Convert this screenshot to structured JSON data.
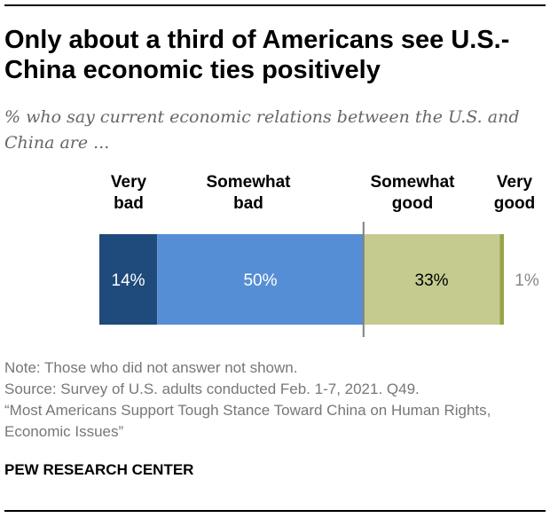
{
  "title": "Only about a third of Americans see U.S.-China economic ties positively",
  "subtitle": "% who say current economic relations between the U.S. and China are ...",
  "chart_data": {
    "type": "bar",
    "orientation": "horizontal-stacked",
    "categories": [
      "Very bad",
      "Somewhat bad",
      "Somewhat good",
      "Very good"
    ],
    "values": [
      14,
      50,
      33,
      1
    ],
    "labels": [
      "14%",
      "50%",
      "33%",
      "1%"
    ],
    "colors": [
      "#1f4a7c",
      "#558ed5",
      "#c5cb8f",
      "#97a34a"
    ],
    "label_colors": [
      "#ffffff",
      "#ffffff",
      "#000000",
      "#888888"
    ]
  },
  "notes": {
    "note": "Note: Those who did not answer not shown.",
    "source": "Source: Survey of U.S. adults conducted Feb. 1-7, 2021. Q49.",
    "report": "“Most Americans Support Tough Stance Toward China on Human Rights, Economic Issues”"
  },
  "brand": "PEW RESEARCH CENTER"
}
